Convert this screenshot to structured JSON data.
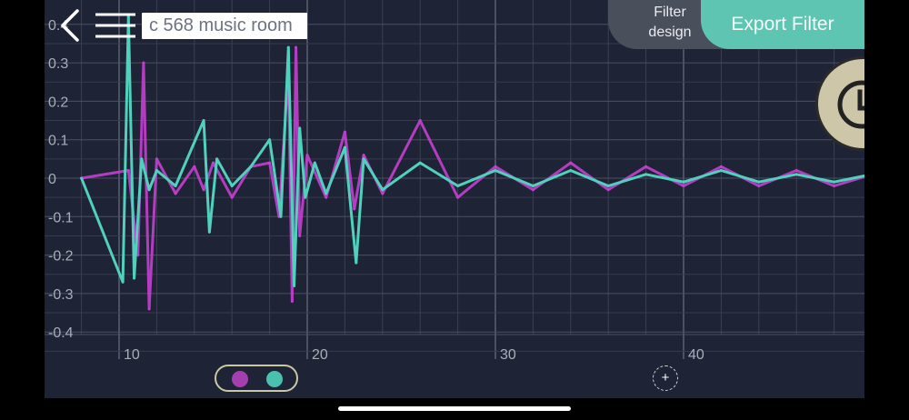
{
  "header": {
    "title": "c 568 music room",
    "filter_design_line1": "Filter",
    "filter_design_line2": "design",
    "export_label": "Export Filter"
  },
  "icons": {
    "back": "chevron-left-icon",
    "menu": "hamburger-menu-icon",
    "clock": "clock-icon",
    "add": "plus-icon"
  },
  "add_button_label": "+",
  "colors": {
    "background": "#1e2436",
    "series_magenta": "#c43fd0",
    "series_teal": "#4fd1bd",
    "export_button": "#5ec5b2",
    "filter_design_button": "#4a4f5c"
  },
  "chart_data": {
    "type": "line",
    "title": "",
    "xlabel": "",
    "ylabel": "",
    "xlim": [
      8,
      50
    ],
    "ylim": [
      -0.45,
      0.42
    ],
    "x_ticks": [
      "10",
      "20",
      "30",
      "40"
    ],
    "x_tick_values": [
      10,
      20,
      30,
      40
    ],
    "y_ticks": [
      "0.4",
      "0.3",
      "0.2",
      "0.1",
      "0",
      "-0.1",
      "-0.2",
      "-0.3",
      "-0.4"
    ],
    "y_tick_values": [
      0.4,
      0.3,
      0.2,
      0.1,
      0,
      -0.1,
      -0.2,
      -0.3,
      -0.4
    ],
    "grid": true,
    "series": [
      {
        "color": "#c43fd0",
        "x": [
          8,
          10.5,
          11.0,
          11.3,
          11.6,
          12,
          13,
          14,
          14.5,
          15,
          16,
          17,
          18,
          18.5,
          19,
          19.2,
          19.4,
          19.6,
          20,
          21,
          22,
          22.5,
          23,
          24,
          26,
          28,
          30,
          32,
          34,
          36,
          38,
          40,
          42,
          44,
          46,
          48,
          50
        ],
        "y": [
          0,
          0.02,
          -0.2,
          0.3,
          -0.34,
          0.05,
          -0.04,
          0.03,
          -0.03,
          0.04,
          -0.05,
          0.03,
          0.04,
          -0.1,
          0.28,
          -0.32,
          0.34,
          -0.15,
          0.06,
          -0.05,
          0.12,
          -0.08,
          0.06,
          -0.04,
          0.15,
          -0.05,
          0.03,
          -0.03,
          0.04,
          -0.03,
          0.03,
          -0.02,
          0.03,
          -0.02,
          0.02,
          -0.02,
          0.01
        ]
      },
      {
        "color": "#4fd1bd",
        "x": [
          8,
          10.2,
          10.5,
          10.8,
          11.2,
          11.6,
          12,
          13,
          14.5,
          14.8,
          15.2,
          16,
          17,
          18,
          18.6,
          19.0,
          19.3,
          19.6,
          19.9,
          20.4,
          21,
          22,
          22.6,
          23,
          24,
          26,
          28,
          30,
          32,
          34,
          36,
          38,
          40,
          42,
          44,
          46,
          48,
          50
        ],
        "y": [
          0,
          -0.27,
          0.42,
          -0.26,
          0.05,
          -0.03,
          0.02,
          -0.02,
          0.15,
          -0.14,
          0.05,
          -0.02,
          0.03,
          0.1,
          -0.1,
          0.34,
          -0.28,
          0.13,
          -0.05,
          0.04,
          -0.04,
          0.08,
          -0.22,
          0.05,
          -0.03,
          0.04,
          -0.02,
          0.02,
          -0.02,
          0.02,
          -0.02,
          0.01,
          -0.01,
          0.02,
          -0.01,
          0.01,
          -0.01,
          0.01
        ]
      }
    ]
  }
}
